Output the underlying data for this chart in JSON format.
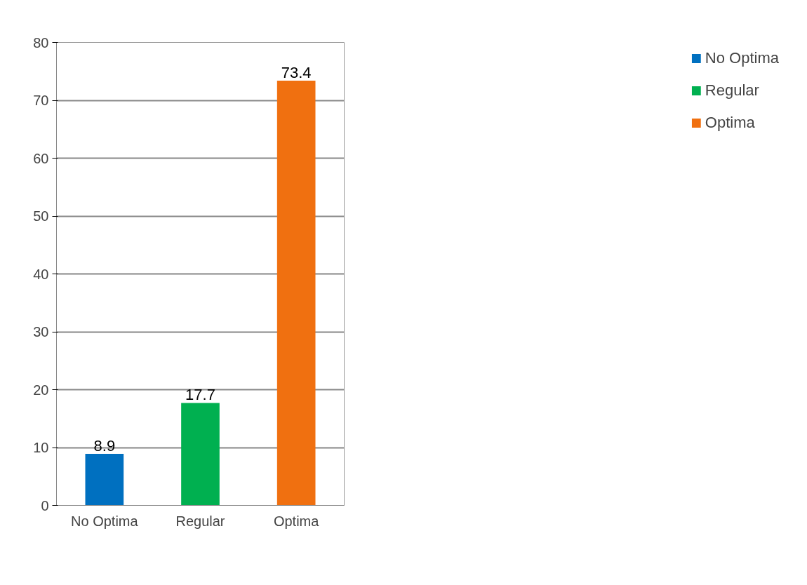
{
  "chart_data": {
    "type": "bar",
    "categories": [
      "No Optima",
      "Regular",
      "Optima"
    ],
    "series": [
      {
        "name": "No Optima",
        "color": "#0070c0",
        "values": [
          8.9,
          null,
          null
        ]
      },
      {
        "name": "Regular",
        "color": "#00b050",
        "values": [
          null,
          17.7,
          null
        ]
      },
      {
        "name": "Optima",
        "color": "#f07010",
        "values": [
          null,
          null,
          73.4
        ]
      }
    ],
    "ylim": [
      0,
      80
    ],
    "yticks": [
      0,
      10,
      20,
      30,
      40,
      50,
      60,
      70,
      80
    ],
    "grid": "y",
    "legend": "right",
    "data_labels": true
  }
}
